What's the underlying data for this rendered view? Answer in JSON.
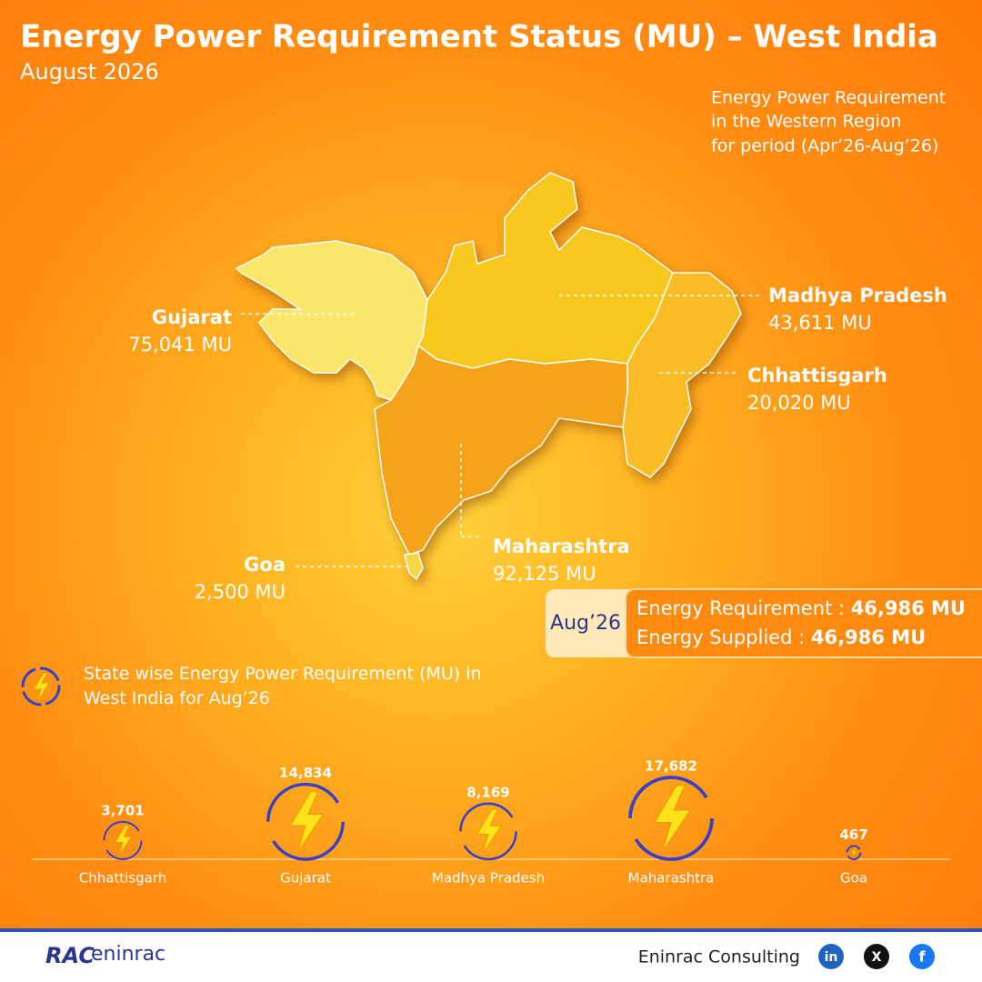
{
  "header": {
    "title": "Energy Power Requirement Status (MU) – West India",
    "subtitle": "August 2026"
  },
  "note": {
    "lines": [
      "Energy Power Requirement",
      "in the Western Region",
      "for period (Apr’26-Aug’26)"
    ]
  },
  "map": {
    "states": [
      {
        "name": "Gujarat",
        "value": "75,041 MU"
      },
      {
        "name": "Madhya Pradesh",
        "value": "43,611 MU"
      },
      {
        "name": "Chhattisgarh",
        "value": "20,020 MU"
      },
      {
        "name": "Maharashtra",
        "value": "92,125 MU"
      },
      {
        "name": "Goa",
        "value": "2,500 MU"
      }
    ]
  },
  "summary": {
    "period": "Aug’26",
    "requirement_label": "Energy Requirement : ",
    "requirement_value": "46,986 MU",
    "supplied_label": "Energy Supplied : ",
    "supplied_value": "46,986 MU"
  },
  "chart_data": {
    "type": "bubble",
    "title": "State wise Energy Power Requirement (MU) in West India for Aug’26",
    "categories": [
      "Chhattisgarh",
      "Gujarat",
      "Madhya Pradesh",
      "Maharashtra",
      "Goa"
    ],
    "values": [
      3701,
      14834,
      8169,
      17682,
      467
    ],
    "value_labels": [
      "3,701",
      "14,834",
      "8,169",
      "17,682",
      "467"
    ],
    "color": "#3a3fc8"
  },
  "footer": {
    "logo_left": "RAC",
    "logo_right": "eninrac",
    "company": "Eninrac Consulting",
    "social": [
      "in",
      "X",
      "f"
    ]
  }
}
